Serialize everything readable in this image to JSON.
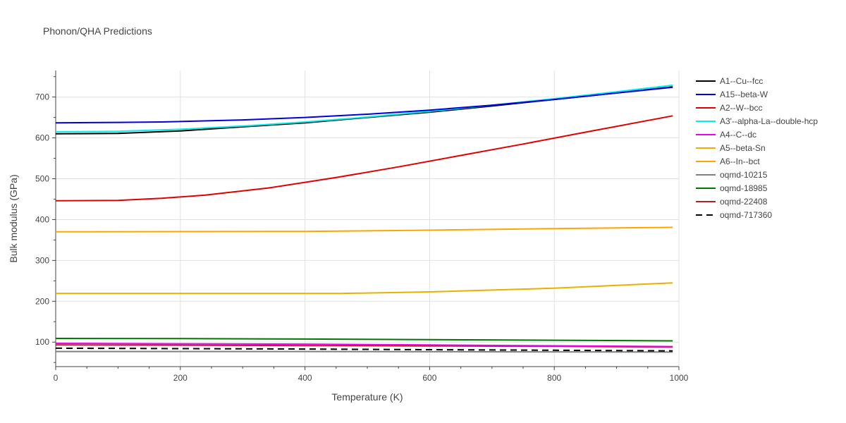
{
  "chart_data": {
    "type": "line",
    "title": "Phonon/QHA Predictions",
    "xlabel": "Temperature (K)",
    "ylabel": "Bulk modulus (GPa)",
    "xlim": [
      0,
      1000
    ],
    "ylim": [
      40,
      765
    ],
    "xticks": [
      0,
      200,
      400,
      600,
      800,
      1000
    ],
    "yticks": [
      100,
      200,
      300,
      400,
      500,
      600,
      700
    ],
    "grid": true,
    "legend_position": "top-right",
    "series": [
      {
        "name": "A1--Cu--fcc",
        "color": "#000000",
        "dash": "solid",
        "x": [
          0,
          100,
          200,
          300,
          400,
          500,
          600,
          700,
          800,
          900,
          990
        ],
        "y": [
          610,
          611,
          617,
          627,
          637,
          650,
          663,
          678,
          694,
          710,
          725
        ]
      },
      {
        "name": "A15--beta-W",
        "color": "#0000dd",
        "dash": "solid",
        "x": [
          0,
          100,
          170,
          300,
          400,
          500,
          600,
          700,
          800,
          900,
          990
        ],
        "y": [
          637,
          638,
          639,
          644,
          650,
          658,
          668,
          680,
          694,
          710,
          724
        ]
      },
      {
        "name": "A2--W--bcc",
        "color": "#e00000",
        "dash": "solid",
        "x": [
          0,
          100,
          170,
          240,
          340,
          450,
          550,
          650,
          750,
          850,
          990
        ],
        "y": [
          446,
          447,
          452,
          460,
          477,
          503,
          529,
          557,
          585,
          614,
          654
        ]
      },
      {
        "name": "A3'--alpha-La--double-hcp",
        "color": "#00f0f0",
        "dash": "solid",
        "x": [
          0,
          100,
          200,
          300,
          400,
          500,
          600,
          700,
          800,
          900,
          990
        ],
        "y": [
          615,
          616,
          621,
          629,
          639,
          651,
          665,
          680,
          696,
          713,
          729
        ]
      },
      {
        "name": "A4--C--dc",
        "color": "#ee00ee",
        "dash": "solid",
        "x": [
          0,
          200,
          400,
          600,
          800,
          990
        ],
        "y": [
          97,
          96,
          95,
          93,
          91,
          89
        ]
      },
      {
        "name": "A5--beta-Sn",
        "color": "#e8b000",
        "dash": "solid",
        "x": [
          0,
          200,
          455,
          600,
          800,
          990
        ],
        "y": [
          219,
          219,
          219,
          223,
          232,
          245
        ]
      },
      {
        "name": "A6--In--bct",
        "color": "#ffa500",
        "dash": "solid",
        "x": [
          0,
          200,
          400,
          600,
          800,
          990
        ],
        "y": [
          370,
          370.5,
          371,
          374,
          378,
          381
        ]
      },
      {
        "name": "oqmd-10215",
        "color": "#808080",
        "dash": "solid",
        "x": [
          0,
          200,
          400,
          600,
          800,
          990
        ],
        "y": [
          77,
          77,
          77,
          76.5,
          76,
          75.5
        ]
      },
      {
        "name": "oqmd-18985",
        "color": "#007700",
        "dash": "solid",
        "x": [
          0,
          200,
          400,
          600,
          800,
          990
        ],
        "y": [
          109,
          108.5,
          107.5,
          106,
          104.5,
          103
        ]
      },
      {
        "name": "oqmd-22408",
        "color": "#b22222",
        "dash": "solid",
        "x": [
          0,
          200,
          400,
          600,
          800,
          990
        ],
        "y": [
          93,
          92.5,
          91.5,
          90.5,
          89.5,
          88
        ]
      },
      {
        "name": "oqmd-717360",
        "color": "#000000",
        "dash": "dash",
        "x": [
          0,
          200,
          400,
          600,
          800,
          990
        ],
        "y": [
          85,
          84,
          83,
          81.5,
          80,
          78.5
        ]
      }
    ]
  }
}
